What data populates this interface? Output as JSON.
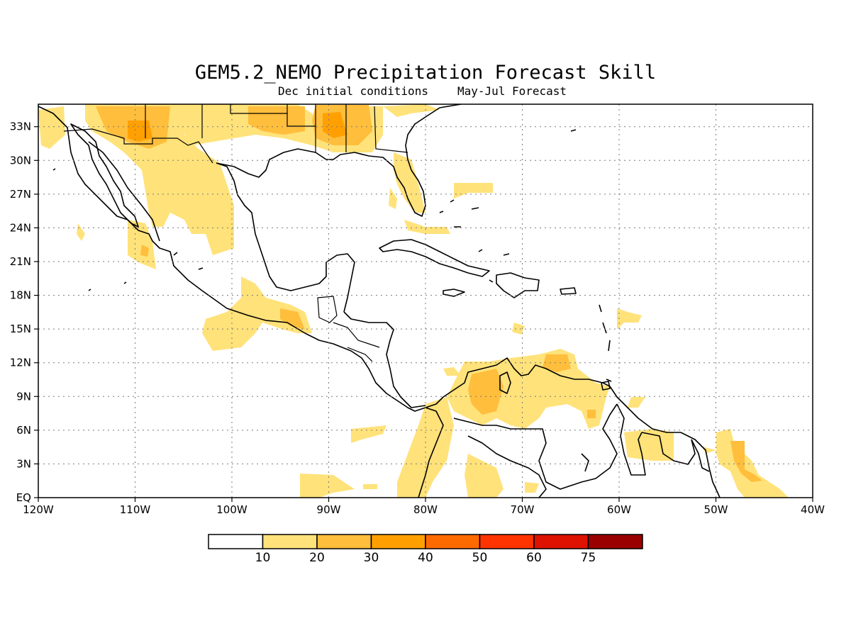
{
  "title": "GEM5.2_NEMO Precipitation Forecast Skill",
  "subtitle_left": "Dec initial conditions",
  "subtitle_right": "May-Jul Forecast",
  "lon_labels": [
    "120W",
    "110W",
    "100W",
    "90W",
    "80W",
    "70W",
    "60W",
    "50W",
    "40W"
  ],
  "lat_labels": [
    "EQ",
    "3N",
    "6N",
    "9N",
    "12N",
    "15N",
    "18N",
    "21N",
    "24N",
    "27N",
    "30N",
    "33N"
  ],
  "colorbar": {
    "labels": [
      "10",
      "20",
      "30",
      "40",
      "50",
      "60",
      "75"
    ],
    "colors": [
      "#ffffff",
      "#ffe27a",
      "#ffbe3c",
      "#ffa000",
      "#ff6a00",
      "#ff3400",
      "#dd1200",
      "#9a0000"
    ]
  },
  "chart_data": {
    "type": "heatmap",
    "title": "GEM5.2_NEMO Precipitation Forecast Skill",
    "subtitle": "Dec initial conditions  May-Jul Forecast",
    "x_range": [
      "120W",
      "40W"
    ],
    "y_range": [
      "EQ",
      "35N"
    ],
    "levels": [
      10,
      20,
      30,
      40,
      50,
      60,
      75
    ],
    "grid": true
  }
}
